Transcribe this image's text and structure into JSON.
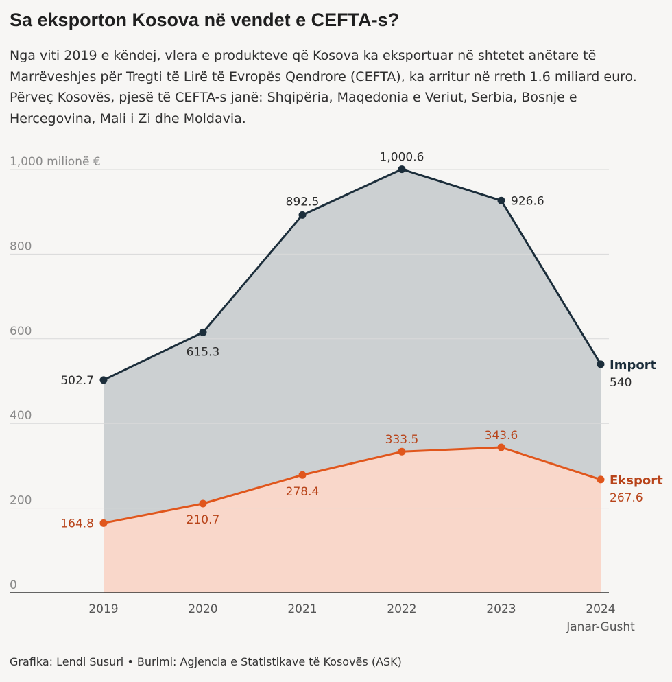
{
  "header": {
    "title": "Sa eksporton Kosova në vendet e CEFTA-s?",
    "subtitle": "Nga viti 2019 e këndej, vlera e produkteve që Kosova ka eksportuar në shtetet anëtare të Marrëveshjes për Tregti të Lirë të Evropës Qendrore (CEFTA), ka arritur në rreth 1.6 miliard euro. Përveç Kosovës, pjesë të CEFTA-s janë: Shqipëria, Maqedonia e Veriut, Serbia, Bosnje e Hercegovina, Mali i Zi dhe Moldavia."
  },
  "footer": {
    "credit": "Grafika: Lendi Susuri • Burimi: Agjencia e Statistikave të Kosovës (ASK)"
  },
  "chart_data": {
    "type": "area",
    "categories": [
      "2019",
      "2020",
      "2021",
      "2022",
      "2023",
      "2024"
    ],
    "category_sublabels": [
      "",
      "",
      "",
      "",
      "",
      "Janar-Gusht"
    ],
    "yticks": [
      0,
      200,
      400,
      600,
      800,
      1000
    ],
    "ytick_labels": [
      "0",
      "200",
      "400",
      "600",
      "800",
      "1,000 milionë €"
    ],
    "ylim": [
      0,
      1000
    ],
    "series": [
      {
        "name": "Import",
        "values": [
          502.7,
          615.3,
          892.5,
          1000.6,
          926.6,
          540
        ],
        "labels": [
          "502.7",
          "615.3",
          "892.5",
          "1,000.6",
          "926.6",
          "540"
        ],
        "line_color": "#1c2e3b",
        "fill_color": "#ccd0d2"
      },
      {
        "name": "Eksport",
        "values": [
          164.8,
          210.7,
          278.4,
          333.5,
          343.6,
          267.6
        ],
        "labels": [
          "164.8",
          "210.7",
          "278.4",
          "333.5",
          "343.6",
          "267.6"
        ],
        "line_color": "#e0561c",
        "fill_color": "#f9d7ca"
      }
    ],
    "colors": {
      "grid": "#d9d9d9",
      "axis": "#333333",
      "export_label": "#b8441a"
    }
  }
}
